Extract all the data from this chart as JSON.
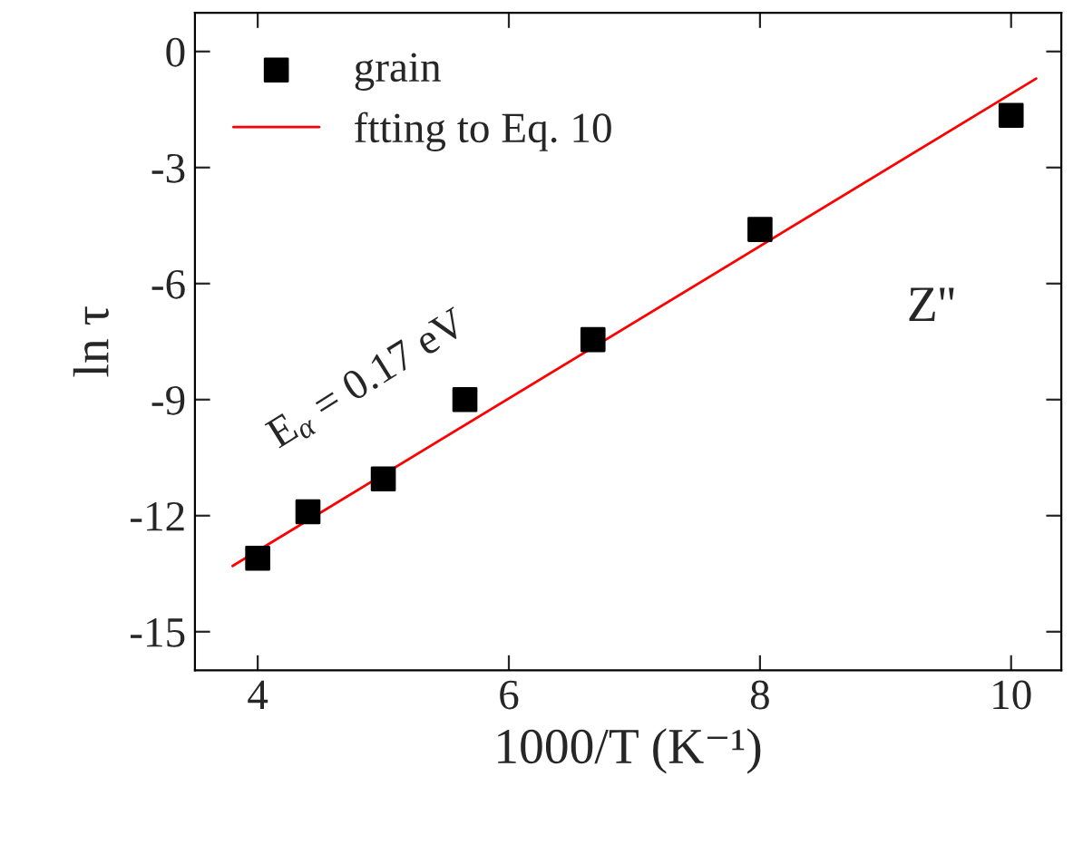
{
  "chart_data": {
    "type": "scatter",
    "xlabel": "1000/T (K⁻¹)",
    "ylabel": "ln τ",
    "series": [
      {
        "name": "grain",
        "color": "#000000",
        "marker": "square",
        "x": [
          4,
          4.4,
          5,
          5.65,
          6.67,
          8,
          10
        ],
        "values": [
          -13.1,
          -11.9,
          -11.05,
          -9.0,
          -7.45,
          -4.6,
          -1.65
        ]
      },
      {
        "name": "ftting to Eq. 10",
        "type": "line",
        "color": "#ff0000",
        "marker": "none",
        "x": [
          3.8,
          10.2
        ],
        "values": [
          -13.3,
          -0.7
        ]
      }
    ],
    "xlim": [
      3.5,
      10.4
    ],
    "xticks": [
      4,
      6,
      8,
      10
    ],
    "ylim": [
      -16,
      1
    ],
    "yticks": [
      {
        "value": 0,
        "label": "0"
      },
      {
        "value": -3,
        "label": "-3"
      },
      {
        "value": -6,
        "label": "-6"
      },
      {
        "value": -9,
        "label": "-9"
      },
      {
        "value": -12,
        "label": "-12"
      },
      {
        "value": -15,
        "label": "-15"
      }
    ],
    "annotations": [
      "E$_{α}$ = 0.17 eV",
      "Z''"
    ],
    "legend": "top left",
    "grid": false
  }
}
